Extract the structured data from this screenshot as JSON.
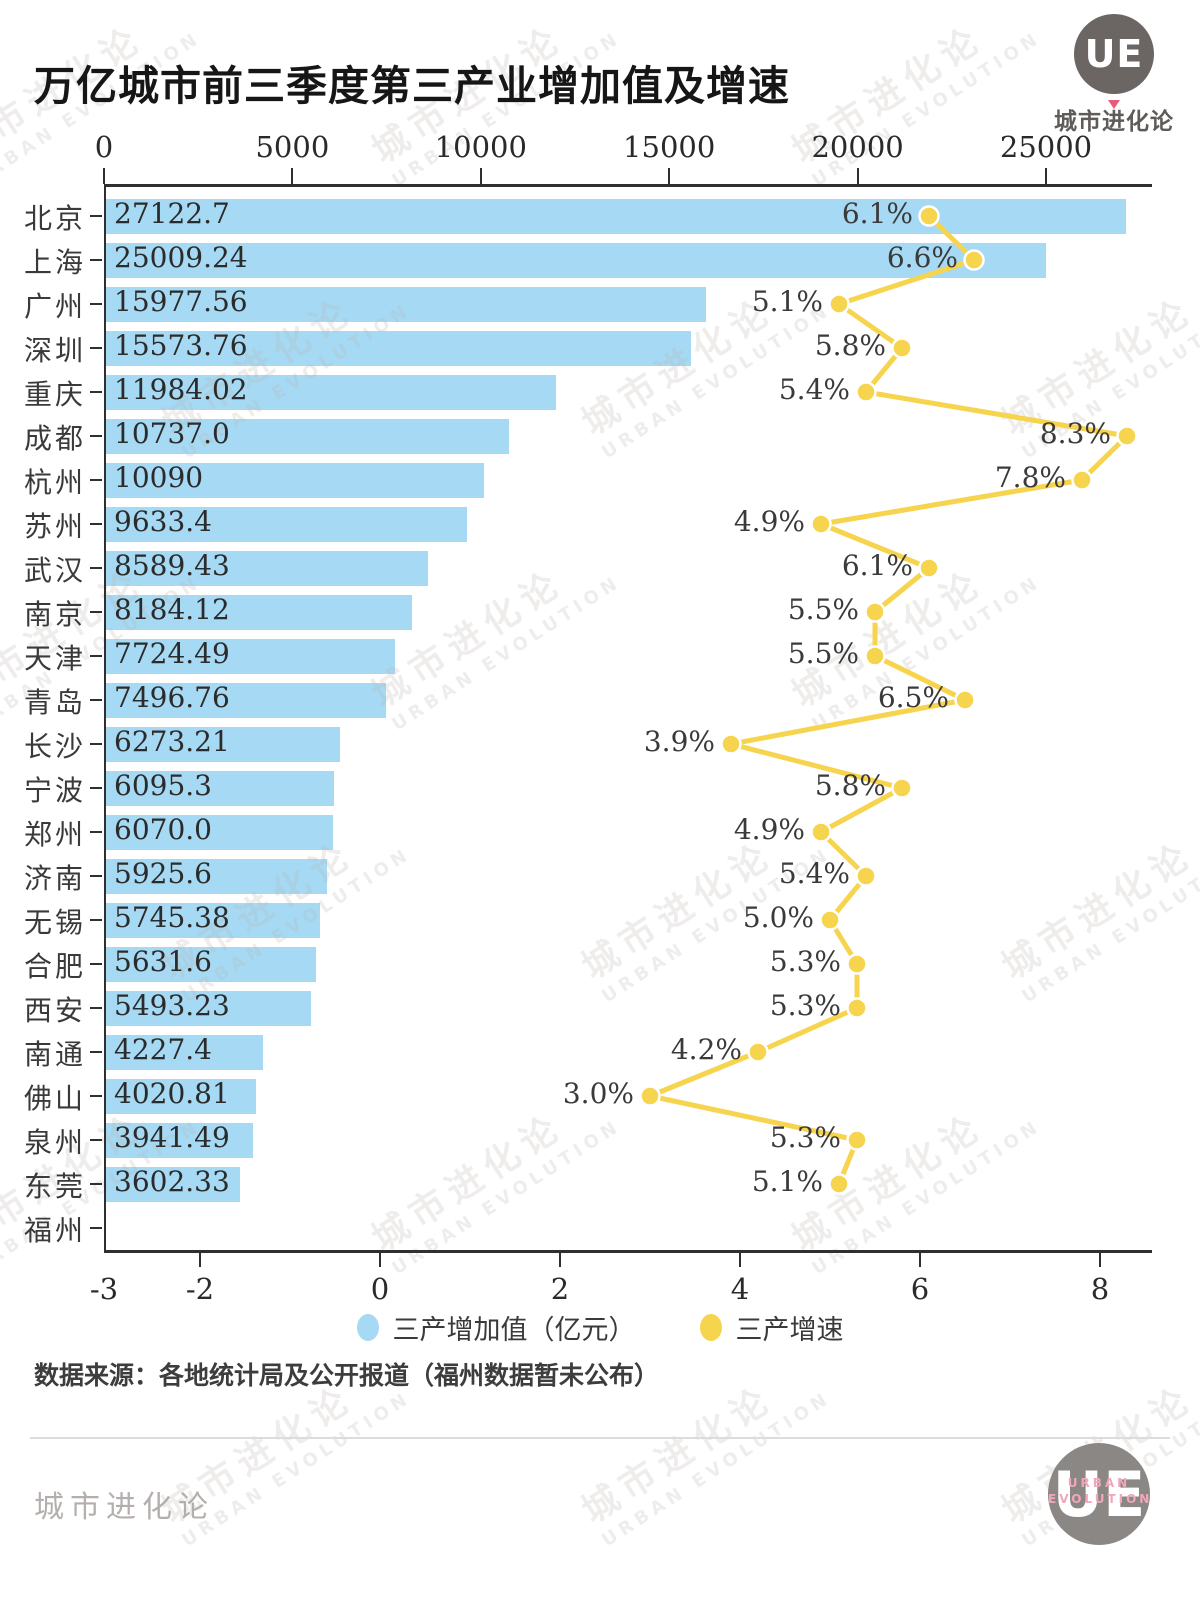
{
  "header": {
    "title": "万亿城市前三季度第三产业增加值及增速",
    "logo": {
      "monogram": "UE",
      "caption": "城市进化论"
    }
  },
  "chart_data": {
    "type": "bar",
    "orientation": "horizontal",
    "title": "万亿城市前三季度第三产业增加值及增速",
    "categories": [
      "北京",
      "上海",
      "广州",
      "深圳",
      "重庆",
      "成都",
      "杭州",
      "苏州",
      "武汉",
      "南京",
      "天津",
      "青岛",
      "长沙",
      "宁波",
      "郑州",
      "济南",
      "无锡",
      "合肥",
      "西安",
      "南通",
      "佛山",
      "泉州",
      "东莞",
      "福州"
    ],
    "series": [
      {
        "name": "三产增加值（亿元）",
        "type": "bar",
        "color": "#a6d9f3",
        "values": [
          27122.7,
          25009.24,
          15977.56,
          15573.76,
          11984.02,
          10737.0,
          10090,
          9633.4,
          8589.43,
          8184.12,
          7724.49,
          7496.76,
          6273.21,
          6095.3,
          6070.0,
          5925.6,
          5745.38,
          5631.6,
          5493.23,
          4227.4,
          4020.81,
          3941.49,
          3602.33,
          null
        ],
        "value_labels": [
          "27122.7",
          "25009.24",
          "15977.56",
          "15573.76",
          "11984.02",
          "10737.0",
          "10090",
          "9633.4",
          "8589.43",
          "8184.12",
          "7724.49",
          "7496.76",
          "6273.21",
          "6095.3",
          "6070.0",
          "5925.6",
          "5745.38",
          "5631.6",
          "5493.23",
          "4227.4",
          "4020.81",
          "3941.49",
          "3602.33",
          ""
        ]
      },
      {
        "name": "三产增速",
        "type": "line",
        "unit": "%",
        "color": "#f6d44d",
        "values": [
          6.1,
          6.6,
          5.1,
          5.8,
          5.4,
          8.3,
          7.8,
          4.9,
          6.1,
          5.5,
          5.5,
          6.5,
          3.9,
          5.8,
          4.9,
          5.4,
          5.0,
          5.3,
          5.3,
          4.2,
          3.0,
          5.3,
          5.1,
          null
        ],
        "value_labels": [
          "6.1%",
          "6.6%",
          "5.1%",
          "5.8%",
          "5.4%",
          "8.3%",
          "7.8%",
          "4.9%",
          "6.1%",
          "5.5%",
          "5.5%",
          "6.5%",
          "3.9%",
          "5.8%",
          "4.9%",
          "5.4%",
          "5.0%",
          "5.3%",
          "5.3%",
          "4.2%",
          "3.0%",
          "5.3%",
          "5.1%",
          ""
        ]
      }
    ],
    "top_axis": {
      "label_for": "三产增加值（亿元）",
      "ticks": [
        0,
        5000,
        10000,
        15000,
        20000,
        25000
      ],
      "range": [
        0,
        27900
      ]
    },
    "bottom_axis": {
      "label_for": "三产增速（%）",
      "ticks": [
        -3,
        -2,
        0,
        2,
        4,
        6,
        8
      ],
      "range": [
        -3,
        8.6
      ]
    },
    "legend": [
      {
        "label": "三产增加值（亿元）",
        "color": "#a6d9f3"
      },
      {
        "label": "三产增速",
        "color": "#f6d44d"
      }
    ],
    "grid": false
  },
  "source_note": "数据来源：各地统计局及公开报道（福州数据暂未公布）",
  "footer": {
    "brand": "城市进化论",
    "logo": {
      "monogram": "UE",
      "caption_line1": "URBAN",
      "caption_line2": "EVOLUTION"
    }
  },
  "watermark": {
    "line1": "城市进化论",
    "line2": "URBAN EVOLUTION"
  },
  "colors": {
    "bar_blue": "#a6d9f3",
    "line_yellow": "#f6d44d",
    "text_dark": "#2e2e2e",
    "logo_gray": "#6b6563",
    "accent_pink": "#f0a7bb",
    "watermark_gray": "#b9b2ae"
  }
}
